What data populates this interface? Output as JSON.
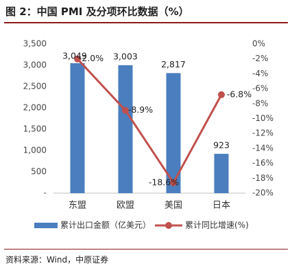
{
  "title": "图 2：中国 PMI 及分项环比数据（%）",
  "source": "资料来源：Wind，中原证券",
  "colors": {
    "bar": "#4a7ebf",
    "line": "#c0504d",
    "title_rule": "#8c1a1a"
  },
  "chart_data": {
    "type": "bar",
    "categories": [
      "东盟",
      "欧盟",
      "美国",
      "日本"
    ],
    "series": [
      {
        "name": "累计出口金额（亿美元）",
        "type": "bar",
        "axis": "left",
        "values": [
          3049,
          3003,
          2817,
          923
        ],
        "labels": [
          "3,049",
          "3,003",
          "2,817",
          "923"
        ]
      },
      {
        "name": "累计同比增速(%)",
        "type": "line",
        "axis": "right",
        "values": [
          -2.0,
          -8.9,
          -18.6,
          -6.8
        ],
        "labels": [
          "-2.0%",
          "-8.9%",
          "-18.6%",
          "-6.8%"
        ]
      }
    ],
    "y_left": {
      "ylim": [
        0,
        3500
      ],
      "ticks": [
        {
          "value": 3500,
          "label": "3,500"
        },
        {
          "value": 3000,
          "label": "3,000"
        },
        {
          "value": 2500,
          "label": "2,500"
        },
        {
          "value": 2000,
          "label": "2,000"
        },
        {
          "value": 1500,
          "label": "1,500"
        },
        {
          "value": 1000,
          "label": "1,000"
        },
        {
          "value": 500,
          "label": "500"
        },
        {
          "value": 0,
          "label": "-"
        }
      ]
    },
    "y_right": {
      "ylim": [
        -20,
        0
      ],
      "ticks": [
        {
          "value": 0,
          "label": "0%"
        },
        {
          "value": -2,
          "label": "-2%"
        },
        {
          "value": -4,
          "label": "-4%"
        },
        {
          "value": -6,
          "label": "-6%"
        },
        {
          "value": -8,
          "label": "-8%"
        },
        {
          "value": -10,
          "label": "-10%"
        },
        {
          "value": -12,
          "label": "-12%"
        },
        {
          "value": -14,
          "label": "-14%"
        },
        {
          "value": -16,
          "label": "-16%"
        },
        {
          "value": -18,
          "label": "-18%"
        },
        {
          "value": -20,
          "label": "-20%"
        }
      ]
    },
    "grid": false,
    "legend": "bottom"
  }
}
